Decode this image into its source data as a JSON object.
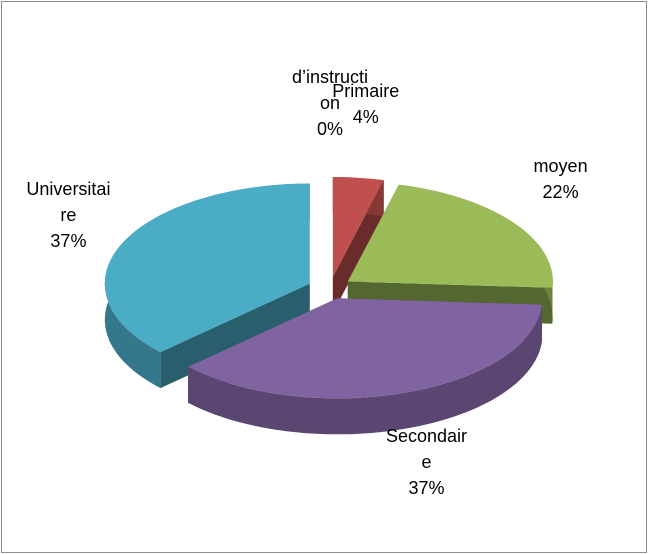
{
  "chart_data": {
    "type": "pie",
    "categories": [
      "d’instruction",
      "Primaire",
      "moyen",
      "Secondaire",
      "Universitaire"
    ],
    "values": [
      0,
      4,
      22,
      37,
      37
    ],
    "value_labels": [
      "0%",
      "4%",
      "22%",
      "37%",
      "37%"
    ],
    "colors": [
      "#4f81bd",
      "#c0504d",
      "#9bbb59",
      "#8064a2",
      "#4bacc6"
    ]
  }
}
